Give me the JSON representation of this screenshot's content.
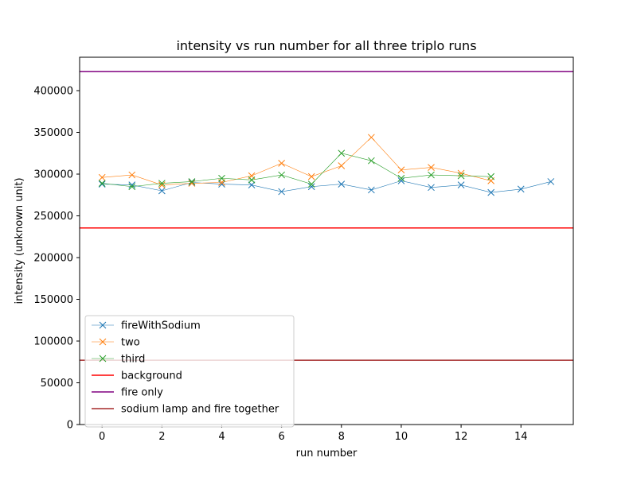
{
  "chart_data": {
    "type": "line",
    "title": "intensity vs run number for all three triplo runs",
    "xlabel": "run number",
    "ylabel": "intensity (unknown unit)",
    "xlim": [
      -0.75,
      15.75
    ],
    "ylim": [
      0,
      440000
    ],
    "xticks": [
      0,
      2,
      4,
      6,
      8,
      10,
      12,
      14
    ],
    "xtick_labels": [
      "0",
      "2",
      "4",
      "6",
      "8",
      "10",
      "12",
      "14"
    ],
    "yticks": [
      0,
      50000,
      100000,
      150000,
      200000,
      250000,
      300000,
      350000,
      400000
    ],
    "ytick_labels": [
      "0",
      "50000",
      "100000",
      "150000",
      "200000",
      "250000",
      "300000",
      "350000",
      "400000"
    ],
    "grid": false,
    "legend_position": "lower-left",
    "series": [
      {
        "name": "fireWithSodium",
        "color": "#1f77b4",
        "marker": "x",
        "x": [
          0,
          1,
          2,
          3,
          4,
          5,
          6,
          7,
          8,
          9,
          10,
          11,
          12,
          13,
          14,
          15
        ],
        "values": [
          288000,
          287000,
          280000,
          290000,
          288000,
          287000,
          279000,
          285000,
          288000,
          281000,
          292000,
          284000,
          287000,
          278000,
          282000,
          291000
        ]
      },
      {
        "name": "two",
        "color": "#ff7f0e",
        "marker": "x",
        "x": [
          0,
          1,
          2,
          3,
          4,
          5,
          6,
          7,
          8,
          9,
          10,
          11,
          12,
          13
        ],
        "values": [
          296000,
          299000,
          287000,
          289000,
          290000,
          298000,
          313000,
          297000,
          310000,
          344000,
          305000,
          308000,
          301000,
          292000
        ]
      },
      {
        "name": "third",
        "color": "#2ca02c",
        "marker": "x",
        "x": [
          0,
          1,
          2,
          3,
          4,
          5,
          6,
          7,
          8,
          9,
          10,
          11,
          12,
          13
        ],
        "values": [
          289000,
          285000,
          289000,
          291000,
          295000,
          293000,
          299000,
          288000,
          325000,
          316000,
          295000,
          299000,
          298000,
          297000
        ]
      }
    ],
    "hlines": [
      {
        "name": "background",
        "color": "#ff0000",
        "value": 235500
      },
      {
        "name": "fire only",
        "color": "#800080",
        "value": 423000
      },
      {
        "name": "sodium lamp and fire together",
        "color": "#a52a2a",
        "value": 77000
      }
    ]
  }
}
